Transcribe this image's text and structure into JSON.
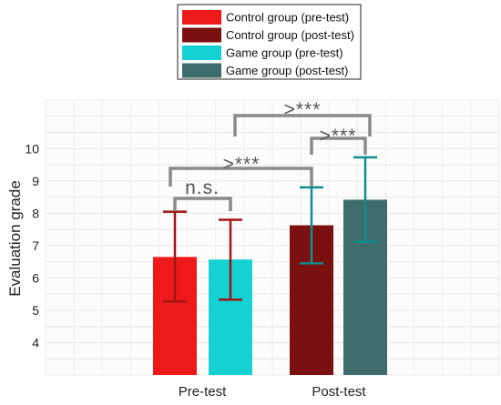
{
  "chart_data": {
    "type": "bar",
    "categories": [
      "Pre-test",
      "Post-test"
    ],
    "ylabel": "Evaluation grade",
    "xlabel": "",
    "ylim": [
      3,
      11.5
    ],
    "yticks": [
      4,
      5,
      6,
      7,
      8,
      9,
      10
    ],
    "grid": true,
    "legend_position": "top-center",
    "series": [
      {
        "name": "Control group (pre-test)",
        "category": "Pre-test",
        "value": 6.65,
        "error_low": 5.27,
        "error_high": 8.05,
        "color": "#ee1a1a",
        "error_color": "#a01414"
      },
      {
        "name": "Game group (pre-test)",
        "category": "Pre-test",
        "value": 6.57,
        "error_low": 5.33,
        "error_high": 7.8,
        "color": "#14d2d2",
        "error_color": "#a01414"
      },
      {
        "name": "Control group (post-test)",
        "category": "Post-test",
        "value": 7.63,
        "error_low": 6.45,
        "error_high": 8.8,
        "color": "#7a1010",
        "error_color": "#0f8c8c"
      },
      {
        "name": "Game group (post-test)",
        "category": "Post-test",
        "value": 8.42,
        "error_low": 7.12,
        "error_high": 9.73,
        "color": "#3e6b6b",
        "error_color": "#0f8c8c"
      }
    ],
    "legend_order": [
      0,
      2,
      1,
      3
    ],
    "annotations": [
      {
        "label": "n.s.",
        "from": 0,
        "to": 1
      },
      {
        "label": ">***",
        "from": 0,
        "to": 2
      },
      {
        "label": ">***",
        "from": 2,
        "to": 3
      },
      {
        "label": ">***",
        "from": 1,
        "to": 3
      }
    ]
  }
}
